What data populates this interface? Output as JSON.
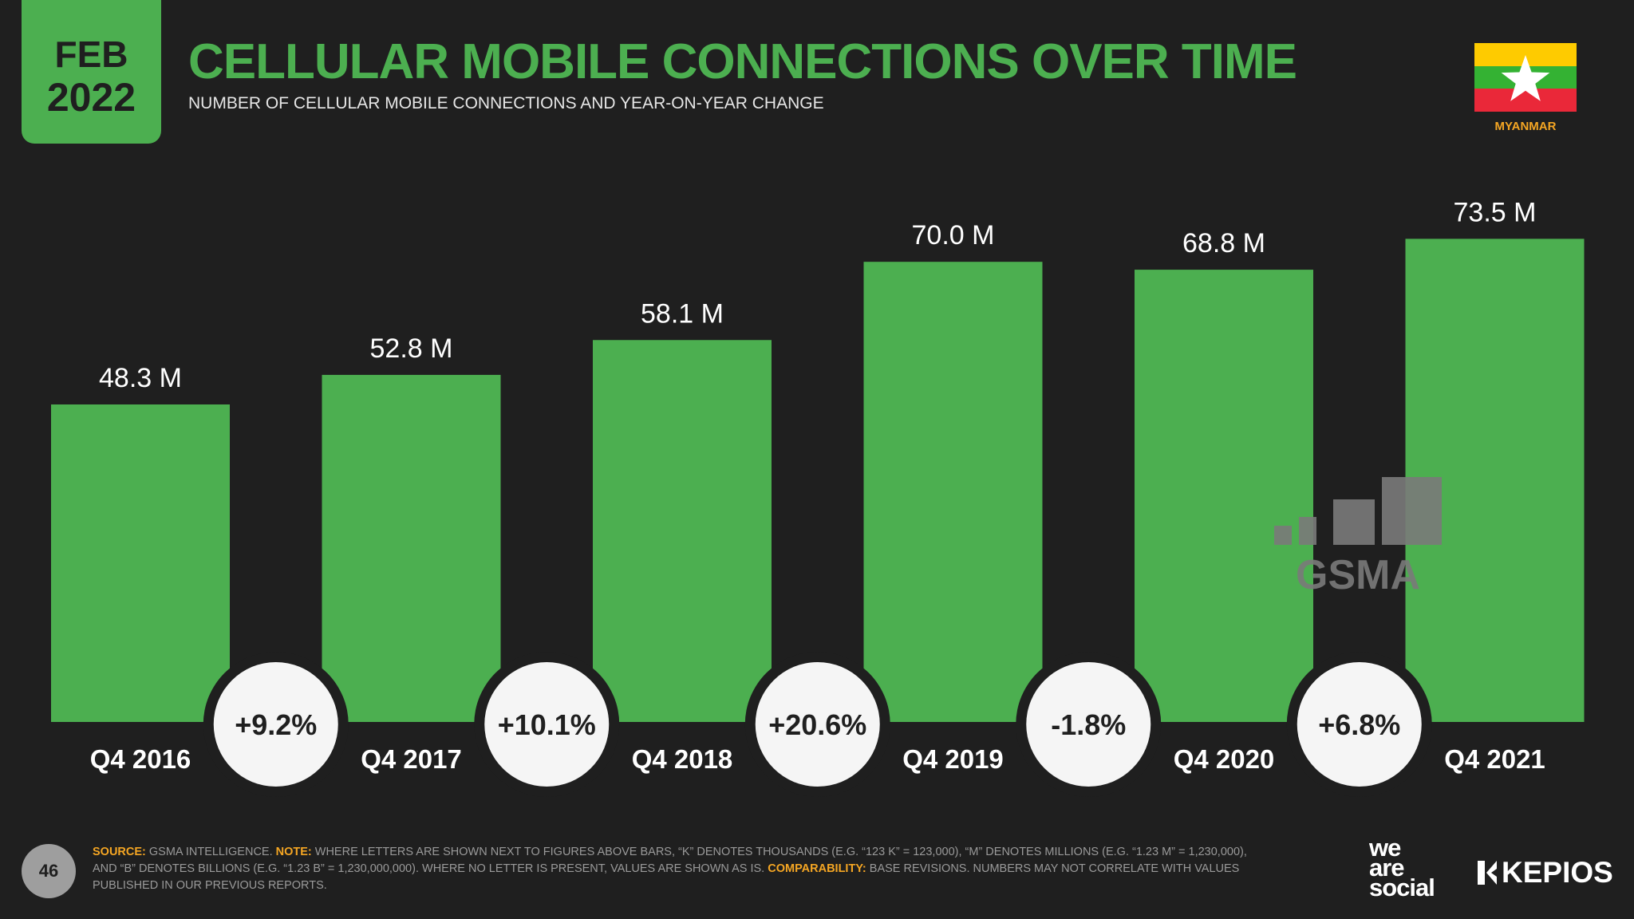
{
  "header": {
    "month": "FEB",
    "year": "2022",
    "title": "CELLULAR MOBILE CONNECTIONS OVER TIME",
    "subtitle": "NUMBER OF CELLULAR MOBILE CONNECTIONS AND YEAR-ON-YEAR CHANGE",
    "country": "MYANMAR"
  },
  "colors": {
    "background": "#1f1f1f",
    "accent": "#4caf50",
    "highlight": "#f5a623",
    "flag_yellow": "#fecb00",
    "flag_green": "#34b233",
    "flag_red": "#ea2839"
  },
  "watermark": {
    "text": "GSMA"
  },
  "chart_data": {
    "type": "bar",
    "title": "CELLULAR MOBILE CONNECTIONS OVER TIME",
    "xlabel": "",
    "ylabel": "",
    "ylim": [
      0,
      80
    ],
    "categories": [
      "Q4 2016",
      "Q4 2017",
      "Q4 2018",
      "Q4 2019",
      "Q4 2020",
      "Q4 2021"
    ],
    "values": [
      48.3,
      52.8,
      58.1,
      70.0,
      68.8,
      73.5
    ],
    "value_labels": [
      "48.3 M",
      "52.8 M",
      "58.1 M",
      "70.0 M",
      "68.8 M",
      "73.5 M"
    ],
    "changes": [
      "+9.2%",
      "+10.1%",
      "+20.6%",
      "-1.8%",
      "+6.8%"
    ]
  },
  "footer": {
    "page_number": "46",
    "source_label": "SOURCE:",
    "source_text": " GSMA INTELLIGENCE. ",
    "note_label": "NOTE:",
    "note_text": " WHERE LETTERS ARE SHOWN NEXT TO FIGURES ABOVE BARS, “K” DENOTES THOUSANDS (E.G. “123 K” = 123,000), “M” DENOTES MILLIONS (E.G. “1.23 M” = 1,230,000), AND “B” DENOTES BILLIONS (E.G. “1.23 B” = 1,230,000,000). WHERE NO LETTER IS PRESENT, VALUES ARE SHOWN AS IS. ",
    "comparability_label": "COMPARABILITY:",
    "comparability_text": " BASE REVISIONS. NUMBERS MAY NOT CORRELATE WITH VALUES PUBLISHED IN OUR PREVIOUS REPORTS.",
    "brand_we": "we",
    "brand_are": "are",
    "brand_social": "social",
    "brand_kepios": "KEPIOS"
  }
}
